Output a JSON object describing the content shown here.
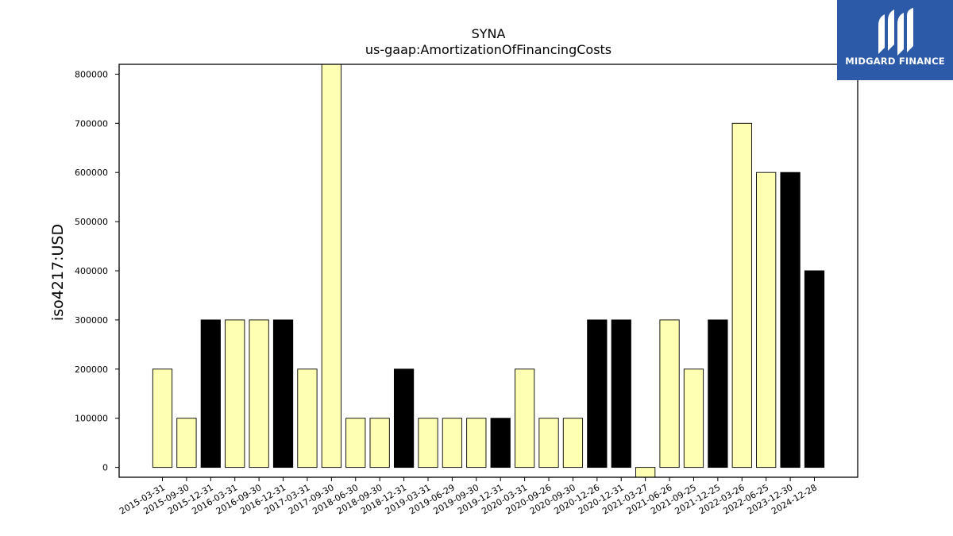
{
  "brand": {
    "name": "MIDGARD FINANCE",
    "bg_color": "#2d5aa8"
  },
  "chart_data": {
    "type": "bar",
    "title": "SYNA",
    "subtitle": "us-gaap:AmortizationOfFinancingCosts",
    "xlabel": "",
    "ylabel": "iso4217:USD",
    "ylim": [
      -20000,
      820000
    ],
    "yticks": [
      0,
      100000,
      200000,
      300000,
      400000,
      500000,
      600000,
      700000,
      800000
    ],
    "grid": false,
    "colors": {
      "light": "#ffffb3",
      "dark": "#000000",
      "edge": "#000000"
    },
    "categories": [
      "2015-03-31",
      "2015-09-30",
      "2015-12-31",
      "2016-03-31",
      "2016-09-30",
      "2016-12-31",
      "2017-03-31",
      "2017-09-30",
      "2018-06-30",
      "2018-09-30",
      "2018-12-31",
      "2019-03-31",
      "2019-06-29",
      "2019-09-30",
      "2019-12-31",
      "2020-03-31",
      "2020-09-26",
      "2020-09-30",
      "2020-12-26",
      "2020-12-31",
      "2021-03-27",
      "2021-06-26",
      "2021-09-25",
      "2021-12-25",
      "2022-03-26",
      "2022-06-25",
      "2023-12-30",
      "2024-12-28"
    ],
    "values": [
      200000,
      100000,
      300000,
      300000,
      300000,
      300000,
      200000,
      820000,
      100000,
      100000,
      200000,
      100000,
      100000,
      100000,
      100000,
      200000,
      100000,
      100000,
      300000,
      300000,
      -20000,
      300000,
      200000,
      300000,
      700000,
      600000,
      600000,
      400000
    ],
    "bar_fill": [
      "light",
      "light",
      "dark",
      "light",
      "light",
      "dark",
      "light",
      "light",
      "light",
      "light",
      "dark",
      "light",
      "light",
      "light",
      "dark",
      "light",
      "light",
      "light",
      "dark",
      "dark",
      "light",
      "light",
      "light",
      "dark",
      "light",
      "light",
      "dark",
      "dark"
    ]
  }
}
